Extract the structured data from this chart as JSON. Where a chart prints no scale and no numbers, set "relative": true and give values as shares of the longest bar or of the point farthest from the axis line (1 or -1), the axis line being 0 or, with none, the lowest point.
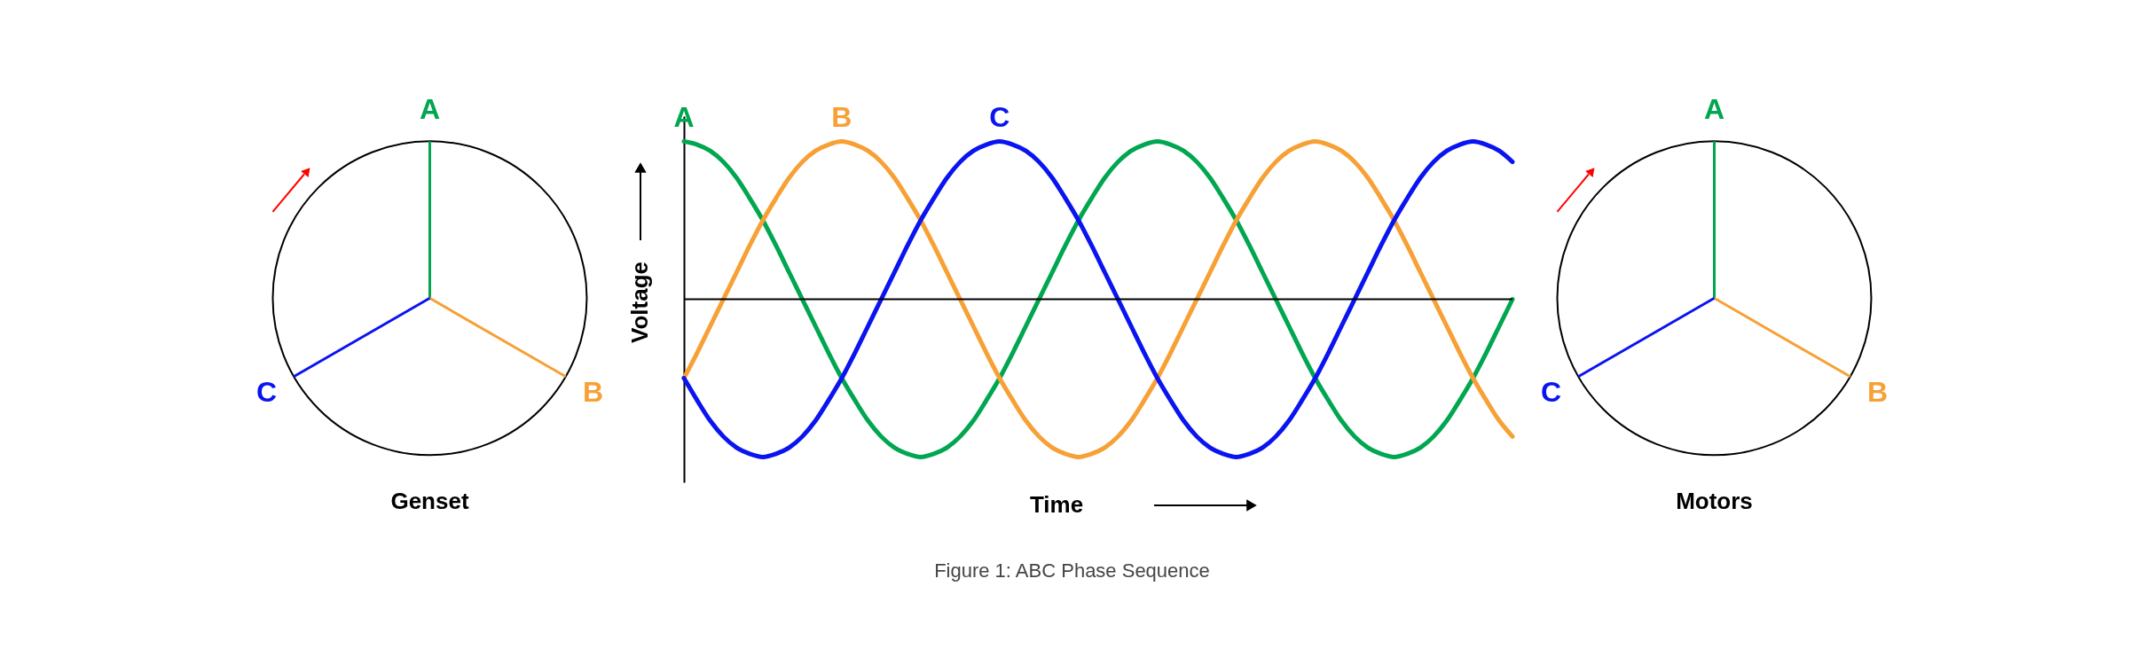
{
  "chart_data": {
    "type": "line",
    "relative": true,
    "xlabel": "Time",
    "ylabel": "Voltage",
    "line_style": "solid",
    "annotations": [
      "Genset",
      "Motors",
      "Figure 1: ABC Phase Sequence"
    ],
    "categories": [
      null,
      null,
      null,
      null,
      null,
      null,
      null,
      null,
      null,
      null,
      null,
      null,
      null,
      null,
      null,
      null,
      null,
      null,
      null,
      null,
      null,
      null,
      null,
      null,
      null,
      null,
      null,
      null,
      null,
      null,
      null,
      null,
      null,
      null,
      null,
      null,
      null,
      null,
      null,
      null,
      null,
      null,
      null,
      null,
      null,
      null,
      null,
      null,
      null,
      null,
      null,
      null,
      null,
      null,
      null,
      null,
      null,
      null,
      null,
      null,
      null,
      null,
      null,
      null
    ],
    "series": [
      {
        "name": "A",
        "color": "#00a650",
        "values": [
          1,
          0.98,
          0.94,
          0.87,
          0.77,
          0.64,
          0.5,
          0.34,
          0.17,
          0,
          -0.17,
          -0.34,
          -0.5,
          -0.64,
          -0.77,
          -0.87,
          -0.94,
          -0.98,
          -1,
          -0.98,
          -0.94,
          -0.87,
          -0.77,
          -0.64,
          -0.5,
          -0.34,
          -0.17,
          0,
          0.17,
          0.34,
          0.5,
          0.64,
          0.77,
          0.87,
          0.94,
          0.98,
          1,
          0.98,
          0.94,
          0.87,
          0.77,
          0.64,
          0.5,
          0.34,
          0.17,
          0,
          -0.17,
          -0.34,
          -0.5,
          -0.64,
          -0.77,
          -0.87,
          -0.94,
          -0.98,
          -1,
          -0.98,
          -0.94,
          -0.87,
          -0.77,
          -0.64,
          -0.5,
          -0.34,
          -0.17,
          0
        ]
      },
      {
        "name": "B",
        "color": "#f7a035",
        "values": [
          -0.5,
          -0.34,
          -0.17,
          0,
          0.17,
          0.34,
          0.5,
          0.64,
          0.77,
          0.87,
          0.94,
          0.98,
          1,
          0.98,
          0.94,
          0.87,
          0.77,
          0.64,
          0.5,
          0.34,
          0.17,
          0,
          -0.17,
          -0.34,
          -0.5,
          -0.64,
          -0.77,
          -0.87,
          -0.94,
          -0.98,
          -1,
          -0.98,
          -0.94,
          -0.87,
          -0.77,
          -0.64,
          -0.5,
          -0.34,
          -0.17,
          0,
          0.17,
          0.34,
          0.5,
          0.64,
          0.77,
          0.87,
          0.94,
          0.98,
          1,
          0.98,
          0.94,
          0.87,
          0.77,
          0.64,
          0.5,
          0.34,
          0.17,
          0,
          -0.17,
          -0.34,
          -0.5,
          -0.64,
          -0.77,
          -0.87
        ]
      },
      {
        "name": "C",
        "color": "#0a14f0",
        "values": [
          -0.5,
          -0.64,
          -0.77,
          -0.87,
          -0.94,
          -0.98,
          -1,
          -0.98,
          -0.94,
          -0.87,
          -0.77,
          -0.64,
          -0.5,
          -0.34,
          -0.17,
          0,
          0.17,
          0.34,
          0.5,
          0.64,
          0.77,
          0.87,
          0.94,
          0.98,
          1,
          0.98,
          0.94,
          0.87,
          0.77,
          0.64,
          0.5,
          0.34,
          0.17,
          0,
          -0.17,
          -0.34,
          -0.5,
          -0.64,
          -0.77,
          -0.87,
          -0.94,
          -0.98,
          -1,
          -0.98,
          -0.94,
          -0.87,
          -0.77,
          -0.64,
          -0.5,
          -0.34,
          -0.17,
          0,
          0.17,
          0.34,
          0.5,
          0.64,
          0.77,
          0.87,
          0.94,
          0.98,
          1,
          0.98,
          0.94,
          0.87
        ]
      }
    ]
  }
}
